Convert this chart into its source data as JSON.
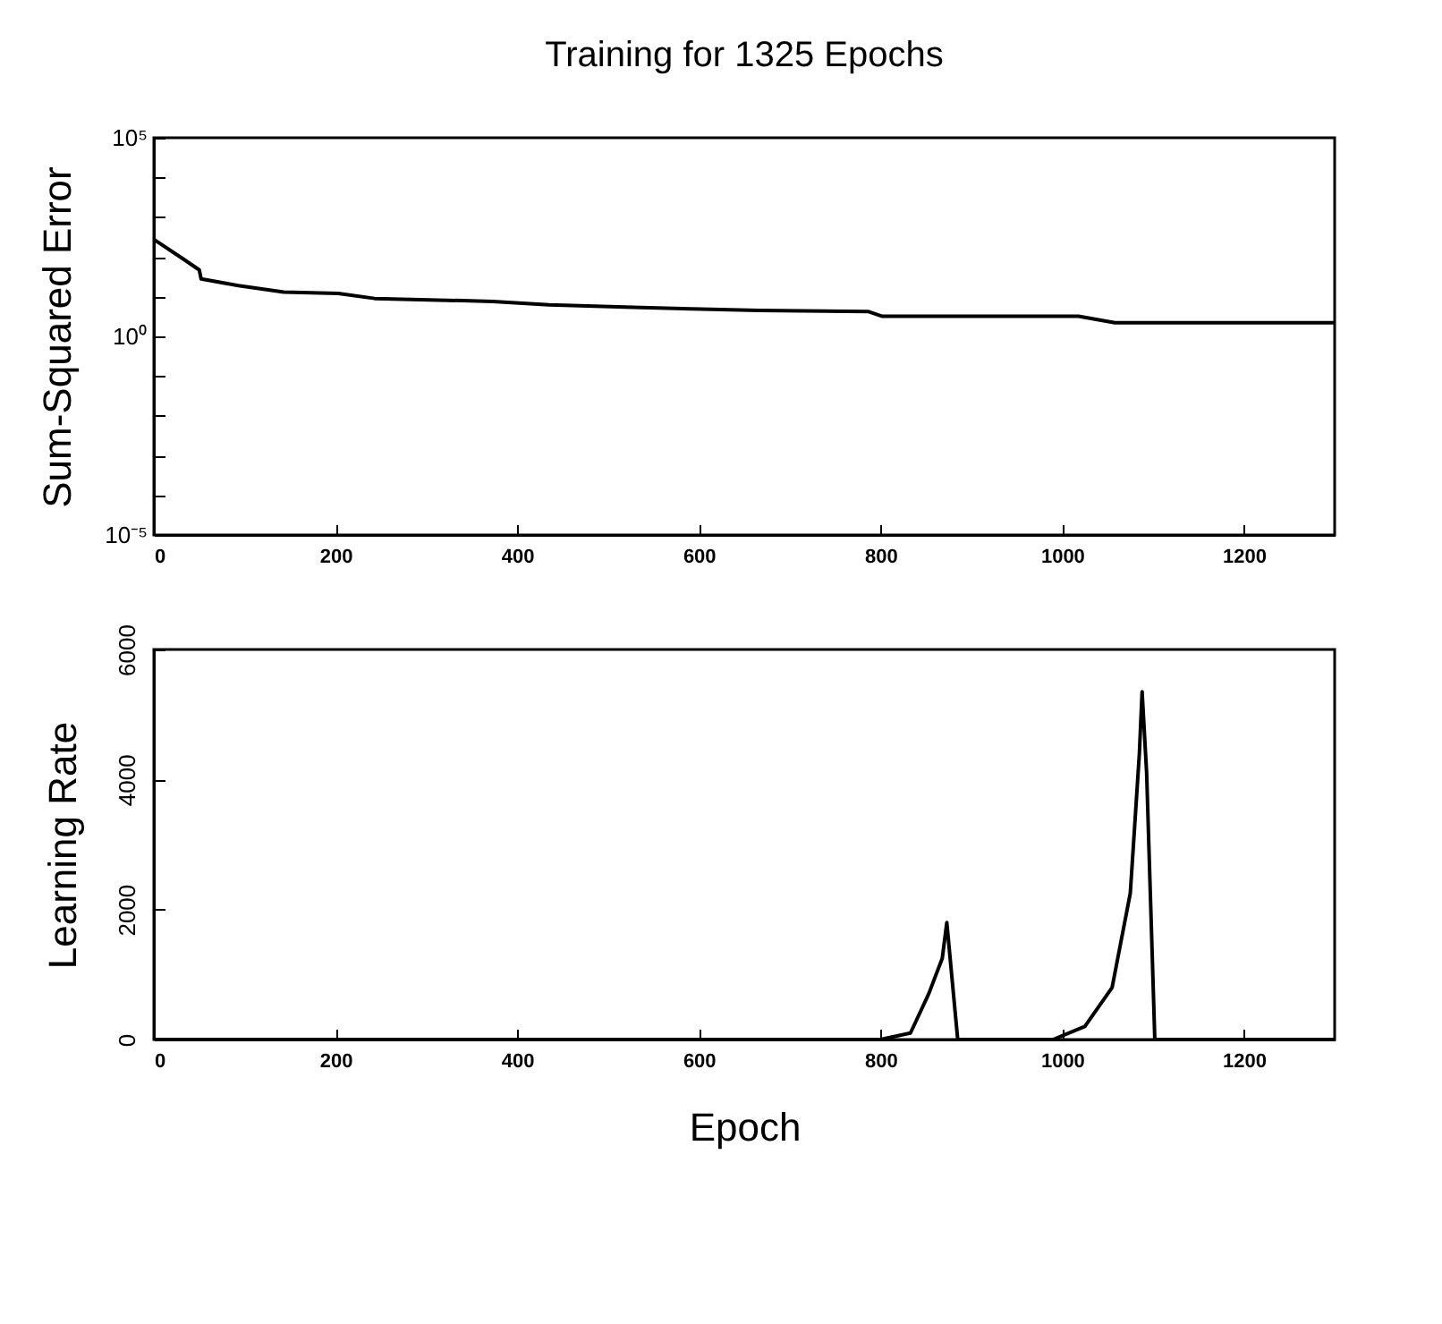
{
  "chart_data": [
    {
      "type": "line",
      "title": "Training for 1325 Epochs",
      "ylabel": "Sum-Squared Error",
      "log": "y",
      "xlim": [
        0,
        1300
      ],
      "ylim": [
        1e-05,
        100000
      ],
      "xticks": [
        0,
        200,
        400,
        600,
        800,
        1000,
        1200
      ],
      "yticks": [
        {
          "value": 1e-05,
          "label": "10⁻⁵"
        },
        {
          "value": 0.0001,
          "label": null
        },
        {
          "value": 0.001,
          "label": null
        },
        {
          "value": 0.01,
          "label": null
        },
        {
          "value": 0.1,
          "label": null
        },
        {
          "value": 1,
          "label": "10⁰"
        },
        {
          "value": 10,
          "label": null
        },
        {
          "value": 100,
          "label": null
        },
        {
          "value": 1000,
          "label": null
        },
        {
          "value": 10000,
          "label": null
        },
        {
          "value": 100000,
          "label": "10⁵"
        }
      ],
      "series": [
        {
          "color": "#000000",
          "x": [
            0,
            32,
            50,
            52,
            93,
            143,
            203,
            243,
            373,
            435,
            536,
            666,
            787,
            802,
            1018,
            1058,
            1300
          ],
          "values": [
            275,
            90,
            47,
            28,
            19,
            13,
            12,
            9,
            7.6,
            6.2,
            5.3,
            4.5,
            4.2,
            3.2,
            3.2,
            2.2,
            2.2
          ]
        }
      ]
    },
    {
      "type": "line",
      "xlabel": "Epoch",
      "ylabel": "Learning Rate",
      "xlim": [
        0,
        1300
      ],
      "ylim": [
        0,
        6000
      ],
      "xticks": [
        0,
        200,
        400,
        600,
        800,
        1000,
        1200
      ],
      "yticks": [
        0,
        2000,
        4000,
        6000
      ],
      "series": [
        {
          "color": "#000000",
          "x": [
            0,
            800,
            833,
            853,
            868,
            873,
            885,
            990,
            1025,
            1055,
            1075,
            1085,
            1088,
            1093,
            1102,
            1300
          ],
          "values": [
            0,
            0,
            100,
            700,
            1250,
            1800,
            0,
            0,
            200,
            800,
            2250,
            4400,
            5350,
            4100,
            0,
            0
          ]
        }
      ]
    }
  ]
}
